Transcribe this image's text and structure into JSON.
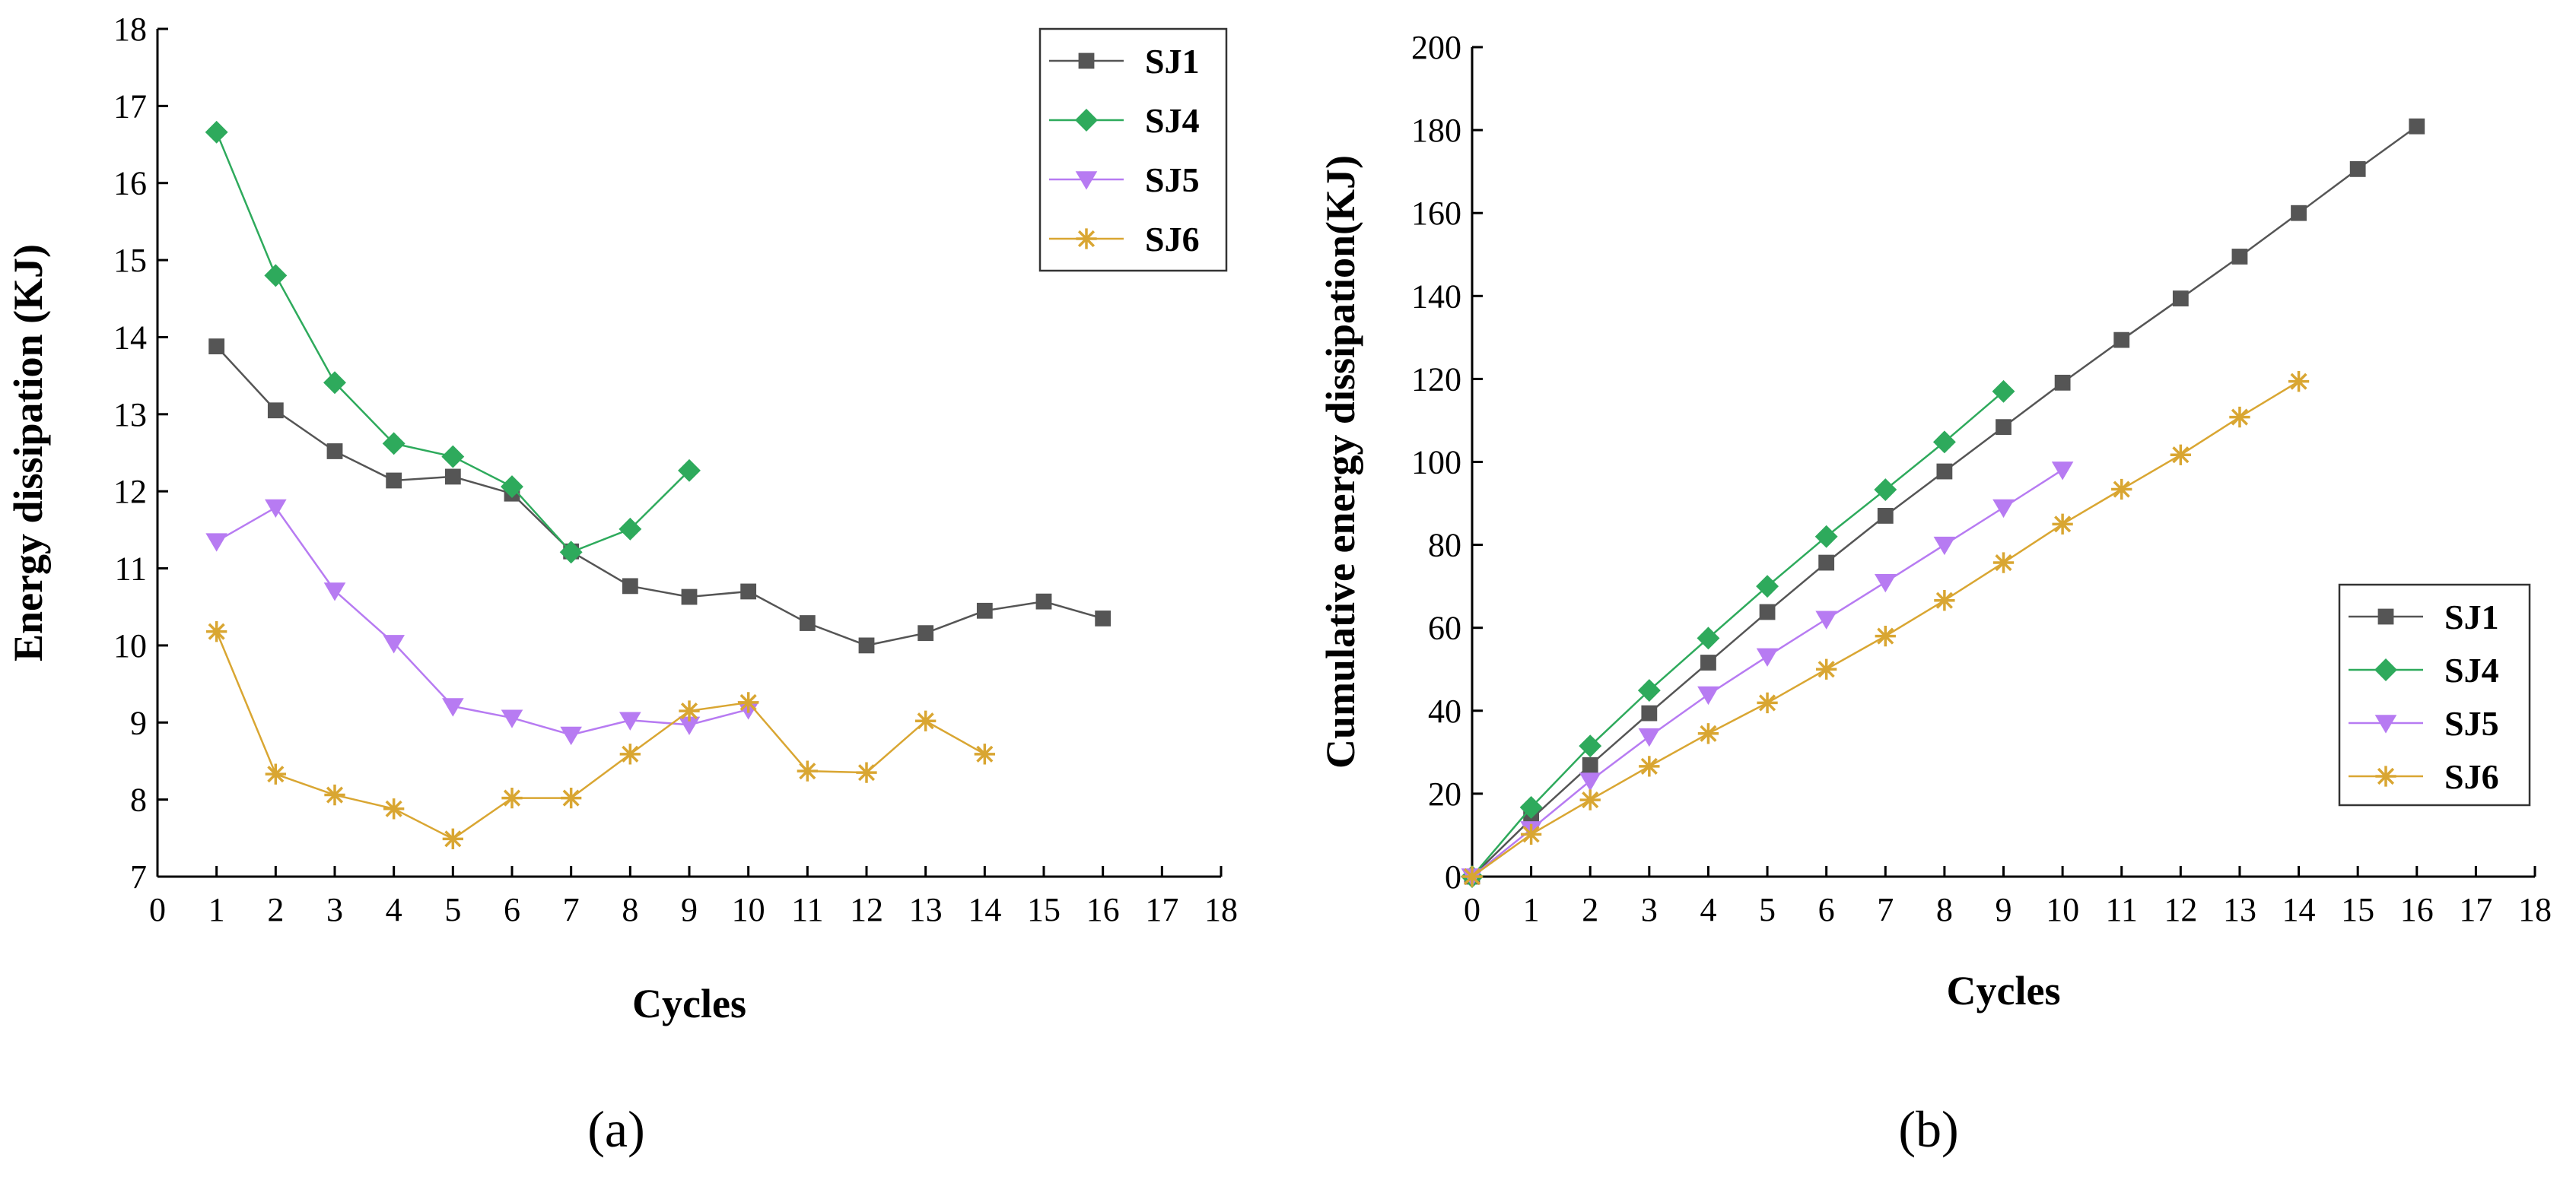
{
  "chart_data": [
    {
      "type": "line",
      "panel_label": "(a)",
      "xlabel": "Cycles",
      "ylabel": "Energy dissipation (KJ)",
      "xlim": [
        0,
        18
      ],
      "ylim": [
        7,
        18
      ],
      "xticks": [
        0,
        1,
        2,
        3,
        4,
        5,
        6,
        7,
        8,
        9,
        10,
        11,
        12,
        13,
        14,
        15,
        16,
        17,
        18
      ],
      "yticks": [
        7,
        8,
        9,
        10,
        11,
        12,
        13,
        14,
        15,
        16,
        17,
        18
      ],
      "grid": false,
      "legend_position": "top-right",
      "series": [
        {
          "name": "SJ1",
          "marker": "square",
          "color": "#555555",
          "x": [
            1,
            2,
            3,
            4,
            5,
            6,
            7,
            8,
            9,
            10,
            11,
            12,
            13,
            14,
            15,
            16
          ],
          "y": [
            13.88,
            13.05,
            12.52,
            12.14,
            12.19,
            11.97,
            11.22,
            10.77,
            10.63,
            10.7,
            10.29,
            10.0,
            10.16,
            10.45,
            10.57,
            10.35
          ]
        },
        {
          "name": "SJ4",
          "marker": "diamond",
          "color": "#2EAA5C",
          "x": [
            1,
            2,
            3,
            4,
            5,
            6,
            7,
            8,
            9
          ],
          "y": [
            16.66,
            14.8,
            13.41,
            12.62,
            12.45,
            12.06,
            11.21,
            11.51,
            12.27
          ]
        },
        {
          "name": "SJ5",
          "marker": "triangle-down",
          "color": "#B77BF2",
          "x": [
            1,
            2,
            3,
            4,
            5,
            6,
            7,
            8,
            9,
            10
          ],
          "y": [
            11.35,
            11.79,
            10.71,
            10.03,
            9.21,
            9.06,
            8.84,
            9.03,
            8.97,
            9.17
          ]
        },
        {
          "name": "SJ6",
          "marker": "star",
          "color": "#D9A632",
          "x": [
            1,
            2,
            3,
            4,
            5,
            6,
            7,
            8,
            9,
            10,
            11,
            12,
            13,
            14
          ],
          "y": [
            10.18,
            8.33,
            8.06,
            7.88,
            7.49,
            8.02,
            8.02,
            8.59,
            9.15,
            9.26,
            8.37,
            8.35,
            9.02,
            8.59
          ]
        }
      ]
    },
    {
      "type": "line",
      "panel_label": "(b)",
      "xlabel": "Cycles",
      "ylabel": "Cumulative energy dissipation(KJ)",
      "xlim": [
        0,
        18
      ],
      "ylim": [
        0,
        200
      ],
      "xticks": [
        0,
        1,
        2,
        3,
        4,
        5,
        6,
        7,
        8,
        9,
        10,
        11,
        12,
        13,
        14,
        15,
        16,
        17,
        18
      ],
      "yticks": [
        0,
        20,
        40,
        60,
        80,
        100,
        120,
        140,
        160,
        180,
        200
      ],
      "grid": false,
      "legend_position": "bottom-right",
      "series": [
        {
          "name": "SJ1",
          "marker": "square",
          "color": "#555555",
          "x": [
            0,
            1,
            2,
            3,
            4,
            5,
            6,
            7,
            8,
            9,
            10,
            11,
            12,
            13,
            14,
            15,
            16
          ],
          "y": [
            0,
            13.9,
            26.9,
            39.4,
            51.6,
            63.8,
            75.7,
            87.0,
            97.7,
            108.4,
            119.1,
            129.4,
            139.4,
            149.5,
            160.0,
            170.6,
            180.9
          ]
        },
        {
          "name": "SJ4",
          "marker": "diamond",
          "color": "#2EAA5C",
          "x": [
            0,
            1,
            2,
            3,
            4,
            5,
            6,
            7,
            8,
            9
          ],
          "y": [
            0,
            16.7,
            31.5,
            44.9,
            57.5,
            70.0,
            82.0,
            93.3,
            104.8,
            117.0
          ]
        },
        {
          "name": "SJ5",
          "marker": "triangle-down",
          "color": "#B77BF2",
          "x": [
            0,
            1,
            2,
            3,
            4,
            5,
            6,
            7,
            8,
            9,
            10
          ],
          "y": [
            0,
            11.4,
            23.1,
            33.8,
            43.9,
            53.1,
            62.1,
            71.0,
            80.0,
            89.0,
            98.1
          ]
        },
        {
          "name": "SJ6",
          "marker": "star",
          "color": "#D9A632",
          "x": [
            0,
            1,
            2,
            3,
            4,
            5,
            6,
            7,
            8,
            9,
            10,
            11,
            12,
            13,
            14
          ],
          "y": [
            0,
            10.2,
            18.5,
            26.6,
            34.5,
            41.9,
            50.0,
            58.0,
            66.6,
            75.7,
            85.0,
            93.4,
            101.7,
            110.8,
            119.4
          ]
        }
      ]
    }
  ]
}
